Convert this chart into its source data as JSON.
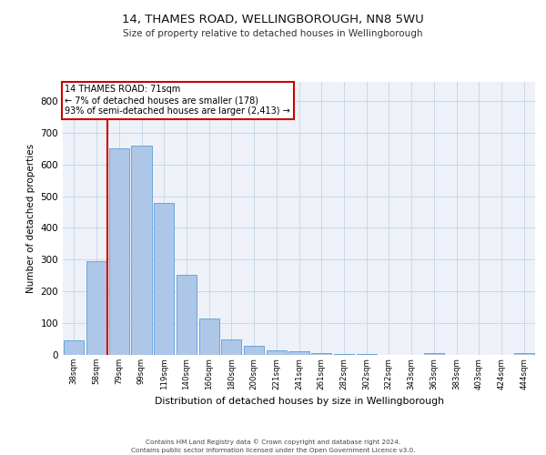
{
  "title1": "14, THAMES ROAD, WELLINGBOROUGH, NN8 5WU",
  "title2": "Size of property relative to detached houses in Wellingborough",
  "xlabel": "Distribution of detached houses by size in Wellingborough",
  "ylabel": "Number of detached properties",
  "categories": [
    "38sqm",
    "58sqm",
    "79sqm",
    "99sqm",
    "119sqm",
    "140sqm",
    "160sqm",
    "180sqm",
    "200sqm",
    "221sqm",
    "241sqm",
    "261sqm",
    "282sqm",
    "302sqm",
    "322sqm",
    "343sqm",
    "363sqm",
    "383sqm",
    "403sqm",
    "424sqm",
    "444sqm"
  ],
  "values": [
    45,
    295,
    650,
    660,
    480,
    253,
    115,
    50,
    28,
    15,
    12,
    5,
    2,
    2,
    1,
    0,
    7,
    1,
    0,
    0,
    5
  ],
  "bar_color": "#aec6e8",
  "bar_edge_color": "#5a9fd4",
  "marker_label1": "14 THAMES ROAD: 71sqm",
  "marker_label2": "← 7% of detached houses are smaller (178)",
  "marker_label3": "93% of semi-detached houses are larger (2,413) →",
  "annotation_box_color": "#ffffff",
  "annotation_border_color": "#cc0000",
  "vline_color": "#cc0000",
  "vline_x": 1.5,
  "grid_color": "#c8d8e8",
  "background_color": "#eef2f8",
  "footer1": "Contains HM Land Registry data © Crown copyright and database right 2024.",
  "footer2": "Contains public sector information licensed under the Open Government Licence v3.0.",
  "ylim": [
    0,
    860
  ]
}
